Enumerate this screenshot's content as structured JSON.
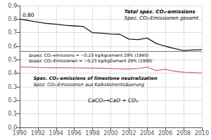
{
  "chart_data": {
    "type": "line",
    "x": [
      1990,
      1991,
      1992,
      1993,
      1994,
      1995,
      1996,
      1997,
      1998,
      1999,
      2000,
      2001,
      2002,
      2003,
      2004,
      2005,
      2006,
      2007,
      2008,
      2009,
      2010
    ],
    "series": [
      {
        "color": "#1a1a1a",
        "values": [
          0.8,
          0.79,
          0.778,
          0.768,
          0.762,
          0.755,
          0.75,
          0.745,
          0.7,
          0.696,
          0.69,
          0.688,
          0.652,
          0.648,
          0.66,
          0.62,
          0.6,
          0.582,
          0.568,
          0.572,
          0.575
        ]
      },
      {
        "color": "#d07070",
        "values": [
          0.445,
          0.445,
          0.443,
          0.442,
          0.441,
          0.44,
          0.44,
          0.439,
          0.438,
          0.437,
          0.435,
          0.433,
          0.432,
          0.435,
          0.445,
          0.42,
          0.43,
          0.415,
          0.408,
          0.405,
          0.402
        ]
      }
    ],
    "hline": {
      "y": 0.565,
      "color": "#777777"
    },
    "xlim": [
      1990,
      2010
    ],
    "xticks": [
      1990,
      1992,
      1994,
      1996,
      1998,
      2000,
      2002,
      2004,
      2006,
      2008,
      2010
    ],
    "ylim": [
      0.0,
      0.9
    ],
    "yticks": [
      {
        "value": 0.0,
        "label": "0.0"
      },
      0.1,
      0.2,
      0.3,
      0.4,
      0.5,
      0.6,
      0.7,
      0.8,
      0.9
    ],
    "grid": true,
    "annotations": [
      "0.80",
      "Total spez. CO₂-emissions",
      "Spez. CO₂-Emissionen gesamt",
      "Δspez. CO₂-emissions = −0.23 kg/kgcement 29% (1990)",
      "Δspez. CO₂-Emissionen = −0,23 kg/kgZement 29% (1990)",
      "Spec. CO₂-emissions of limestone neutralization",
      "Spez. CO₂-Emissionen aus Kalksteinentsäuerung",
      "CaCO₃→CaO + CO₂"
    ]
  }
}
